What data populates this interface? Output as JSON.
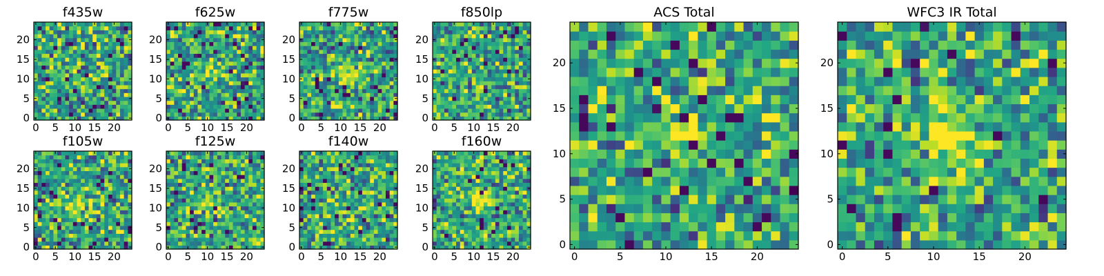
{
  "chart_data": [
    {
      "type": "heatmap",
      "title": "f435w",
      "grid_size": 25,
      "source_center": [
        12,
        11
      ],
      "source_strength": 0.02,
      "noise_seed": 11,
      "xticks": [
        0,
        5,
        10,
        15,
        20
      ],
      "yticks": [
        0,
        5,
        10,
        15,
        20
      ],
      "xlim": [
        -0.5,
        24.5
      ],
      "ylim": [
        -0.5,
        24.5
      ],
      "colormap": "viridis",
      "grid": false
    },
    {
      "type": "heatmap",
      "title": "f625w",
      "grid_size": 25,
      "source_center": [
        12,
        12
      ],
      "source_strength": 0.3,
      "noise_seed": 23,
      "xticks": [
        0,
        5,
        10,
        15,
        20
      ],
      "yticks": [
        0,
        5,
        10,
        15,
        20
      ],
      "xlim": [
        -0.5,
        24.5
      ],
      "ylim": [
        -0.5,
        24.5
      ],
      "colormap": "viridis",
      "grid": false
    },
    {
      "type": "heatmap",
      "title": "f775w",
      "grid_size": 25,
      "source_center": [
        12,
        11
      ],
      "source_strength": 0.32,
      "noise_seed": 37,
      "xticks": [
        0,
        5,
        10,
        15,
        20
      ],
      "yticks": [
        0,
        5,
        10,
        15,
        20
      ],
      "xlim": [
        -0.5,
        24.5
      ],
      "ylim": [
        -0.5,
        24.5
      ],
      "colormap": "viridis",
      "grid": false
    },
    {
      "type": "heatmap",
      "title": "f850lp",
      "grid_size": 25,
      "source_center": [
        12,
        12
      ],
      "source_strength": 0.05,
      "noise_seed": 41,
      "xticks": [
        0,
        5,
        10,
        15,
        20
      ],
      "yticks": [
        0,
        5,
        10,
        15,
        20
      ],
      "xlim": [
        -0.5,
        24.5
      ],
      "ylim": [
        -0.5,
        24.5
      ],
      "colormap": "viridis",
      "grid": false
    },
    {
      "type": "heatmap",
      "title": "f105w",
      "grid_size": 25,
      "source_center": [
        11,
        11
      ],
      "source_strength": 0.3,
      "noise_seed": 53,
      "xticks": [
        0,
        5,
        10,
        15,
        20
      ],
      "yticks": [
        0,
        5,
        10,
        15,
        20
      ],
      "xlim": [
        -0.5,
        24.5
      ],
      "ylim": [
        -0.5,
        24.5
      ],
      "colormap": "viridis",
      "grid": false
    },
    {
      "type": "heatmap",
      "title": "f125w",
      "grid_size": 25,
      "source_center": [
        12,
        11
      ],
      "source_strength": 0.25,
      "noise_seed": 67,
      "xticks": [
        0,
        5,
        10,
        15,
        20
      ],
      "yticks": [
        0,
        5,
        10,
        15,
        20
      ],
      "xlim": [
        -0.5,
        24.5
      ],
      "ylim": [
        -0.5,
        24.5
      ],
      "colormap": "viridis",
      "grid": false
    },
    {
      "type": "heatmap",
      "title": "f140w",
      "grid_size": 25,
      "source_center": [
        12,
        12
      ],
      "source_strength": 0.12,
      "noise_seed": 79,
      "xticks": [
        0,
        5,
        10,
        15,
        20
      ],
      "yticks": [
        0,
        5,
        10,
        15,
        20
      ],
      "xlim": [
        -0.5,
        24.5
      ],
      "ylim": [
        -0.5,
        24.5
      ],
      "colormap": "viridis",
      "grid": false
    },
    {
      "type": "heatmap",
      "title": "f160w",
      "grid_size": 25,
      "source_center": [
        12,
        12
      ],
      "source_strength": 0.4,
      "noise_seed": 83,
      "xticks": [
        0,
        5,
        10,
        15,
        20
      ],
      "yticks": [
        0,
        5,
        10,
        15,
        20
      ],
      "xlim": [
        -0.5,
        24.5
      ],
      "ylim": [
        -0.5,
        24.5
      ],
      "colormap": "viridis",
      "grid": false
    },
    {
      "type": "heatmap",
      "title": "ACS Total",
      "grid_size": 25,
      "source_center": [
        12,
        12
      ],
      "source_strength": 0.45,
      "noise_seed": 97,
      "xticks": [
        0,
        5,
        10,
        15,
        20
      ],
      "yticks": [
        0,
        5,
        10,
        15,
        20
      ],
      "xlim": [
        -0.5,
        24.5
      ],
      "ylim": [
        -0.5,
        24.5
      ],
      "colormap": "viridis",
      "grid": false
    },
    {
      "type": "heatmap",
      "title": "WFC3 IR Total",
      "grid_size": 25,
      "source_center": [
        11,
        12
      ],
      "source_strength": 0.5,
      "noise_seed": 101,
      "xticks": [
        0,
        5,
        10,
        15,
        20
      ],
      "yticks": [
        0,
        5,
        10,
        15,
        20
      ],
      "xlim": [
        -0.5,
        24.5
      ],
      "ylim": [
        -0.5,
        24.5
      ],
      "colormap": "viridis",
      "grid": false
    }
  ]
}
